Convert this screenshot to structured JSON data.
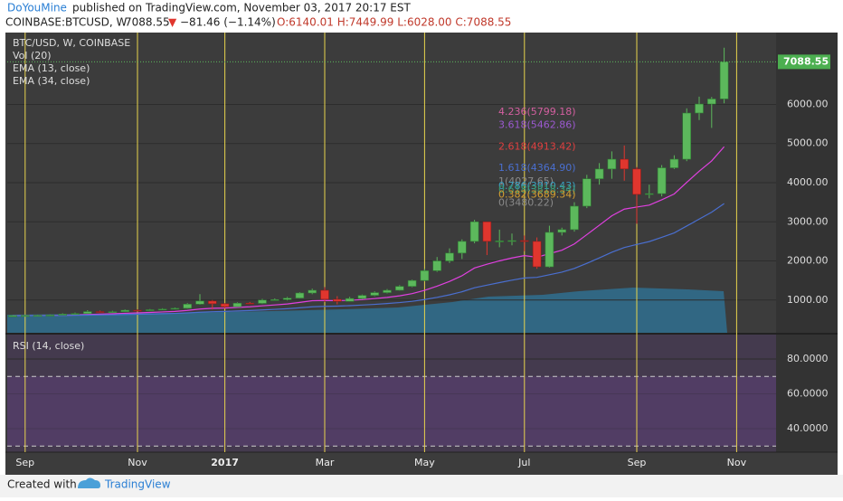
{
  "header": {
    "author": "DoYouMine",
    "published": " published on TradingView.com, November 03, 2017 20:17 EST",
    "symbol": "COINBASE:BTCUSD, W",
    "last": "7088.55",
    "arrow": "▼",
    "change": "−81.46 (−1.14%)",
    "ohlc": "O:6140.01 H:7449.99 L:6028.00 C:7088.55"
  },
  "footer": {
    "created": "Created with",
    "brand": "TradingView"
  },
  "chart_data": {
    "type": "candlestick",
    "legend": [
      "BTC/USD, W, COINBASE",
      "Vol (20)",
      "EMA (13, close)",
      "EMA (34, close)"
    ],
    "categories": [
      null,
      "Sep",
      null,
      null,
      null,
      null,
      null,
      null,
      null,
      null,
      "Nov",
      null,
      null,
      null,
      null,
      null,
      null,
      "2017",
      null,
      null,
      null,
      null,
      null,
      null,
      null,
      "Mar",
      null,
      null,
      null,
      null,
      null,
      null,
      null,
      "May",
      null,
      null,
      null,
      null,
      null,
      null,
      null,
      "Jul",
      null,
      null,
      null,
      null,
      null,
      null,
      null,
      null,
      "Sep",
      null,
      null,
      null,
      null,
      null,
      null,
      null,
      "Nov"
    ],
    "open": [
      575,
      603,
      606,
      608,
      615,
      640,
      655,
      705,
      700,
      703,
      740,
      735,
      752,
      770,
      790,
      895,
      975,
      905,
      830,
      920,
      915,
      1000,
      1010,
      1050,
      1180,
      1250,
      1020,
      965,
      1040,
      1120,
      1190,
      1250,
      1350,
      1500,
      1750,
      2000,
      2200,
      2500,
      3000,
      2500,
      2510,
      2520,
      2500,
      1850,
      2730,
      2800,
      3400,
      4100,
      4350,
      4600,
      4350,
      3700,
      3720,
      4380,
      4600,
      5780,
      6010,
      6140.01,
      null
    ],
    "high": [
      615,
      630,
      625,
      630,
      660,
      680,
      740,
      730,
      725,
      760,
      760,
      770,
      790,
      810,
      920,
      1150,
      1000,
      920,
      940,
      950,
      1030,
      1040,
      1080,
      1200,
      1290,
      1330,
      1100,
      1080,
      1140,
      1220,
      1280,
      1380,
      1520,
      1800,
      2100,
      2320,
      2550,
      3050,
      3000,
      2800,
      2700,
      2650,
      2600,
      2900,
      2850,
      3500,
      4200,
      4500,
      4800,
      4950,
      4400,
      3950,
      4450,
      4700,
      5900,
      6200,
      6190,
      7449.99,
      null
    ],
    "low": [
      570,
      598,
      600,
      603,
      610,
      635,
      650,
      690,
      690,
      700,
      720,
      730,
      745,
      760,
      780,
      880,
      760,
      780,
      820,
      890,
      900,
      985,
      990,
      1040,
      1150,
      950,
      890,
      960,
      1020,
      1100,
      1170,
      1240,
      1330,
      1480,
      1720,
      1950,
      2050,
      2450,
      2150,
      2350,
      2400,
      2250,
      1800,
      1830,
      2650,
      2750,
      3350,
      3950,
      4100,
      4050,
      2950,
      3600,
      3650,
      4350,
      4550,
      5600,
      5400,
      6028.0,
      null
    ],
    "close": [
      603,
      606,
      608,
      615,
      640,
      655,
      705,
      700,
      703,
      740,
      735,
      752,
      770,
      790,
      895,
      975,
      905,
      830,
      920,
      915,
      1000,
      1010,
      1050,
      1180,
      1250,
      1020,
      965,
      1040,
      1120,
      1190,
      1250,
      1350,
      1500,
      1750,
      2000,
      2200,
      2500,
      3000,
      2500,
      2510,
      2520,
      2500,
      1850,
      2730,
      2800,
      3400,
      4100,
      4350,
      4600,
      4350,
      3700,
      3720,
      4380,
      4600,
      5780,
      6010,
      6140.01,
      7088.55,
      null
    ],
    "up_color": "#5cb85c",
    "down_color": "#e0362e",
    "ylim": [
      163,
      7837
    ],
    "yticks": [
      {
        "value": 1000,
        "label": "1000.00"
      },
      {
        "value": 2000,
        "label": "2000.00"
      },
      {
        "value": 3000,
        "label": "3000.00"
      },
      {
        "value": 4000,
        "label": "4000.00"
      },
      {
        "value": 5000,
        "label": "5000.00"
      },
      {
        "value": 6000,
        "label": "6000.00"
      }
    ],
    "fib": [
      {
        "text": "4.236(5799.18)",
        "value": 5799.18,
        "color": "#d45fa0"
      },
      {
        "text": "3.618(5462.86)",
        "value": 5462.86,
        "color": "#9b59d0"
      },
      {
        "text": "2.618(4913.42)",
        "value": 4913.42,
        "color": "#e04040"
      },
      {
        "text": "1.618(4364.90)",
        "value": 4364.9,
        "color": "#4a6fd0"
      },
      {
        "text": "1(4027.65)",
        "value": 4027.65,
        "color": "#8a8a8a"
      },
      {
        "text": "0.786(3910.43)",
        "value": 3910.43,
        "color": "#3aa0c0"
      },
      {
        "text": "0.618(3818.34)",
        "value": 3818.34,
        "color": "#3a9a70"
      },
      {
        "text": "0.382(3689.34)",
        "value": 3689.34,
        "color": "#d6a030"
      },
      {
        "text": "0(3480.22)",
        "value": 3480.22,
        "color": "#8a8a8a"
      }
    ],
    "rsi": {
      "title": "RSI (14, close)",
      "ylim": [
        26.5,
        94
      ],
      "yticks": [
        {
          "value": 80,
          "label": "80.0000"
        },
        {
          "value": 60,
          "label": "60.0000"
        },
        {
          "value": 40,
          "label": "40.0000"
        }
      ],
      "bands": [
        70,
        30
      ]
    }
  }
}
